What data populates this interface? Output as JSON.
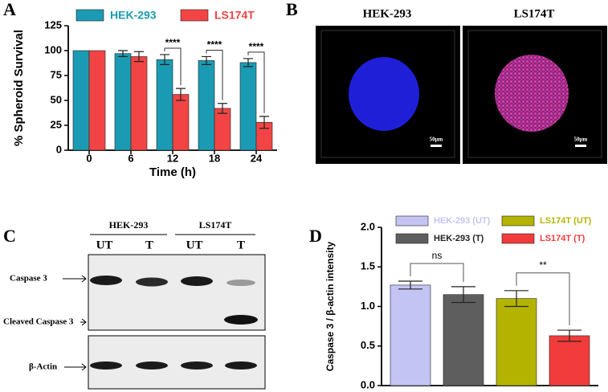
{
  "panel_labels": [
    "A",
    "B",
    "C",
    "D"
  ],
  "chart_data": [
    {
      "type": "bar",
      "x_label": "Time (h)",
      "y_label": "% Spheroid Survival",
      "categories": [
        "0",
        "6",
        "12",
        "18",
        "24"
      ],
      "series": [
        {
          "name": "HEK-293",
          "color": "#1b9bb3",
          "values": [
            100,
            97,
            91,
            90,
            88
          ],
          "errors": [
            0,
            3,
            5,
            4,
            4
          ]
        },
        {
          "name": "LS174T",
          "color": "#f24444",
          "values": [
            100,
            94,
            56,
            42,
            28
          ],
          "errors": [
            0,
            5,
            6,
            5,
            6
          ]
        }
      ],
      "significance": [
        null,
        null,
        "****",
        "****",
        "****"
      ],
      "ylim": [
        0,
        125
      ],
      "yticks": [
        0,
        25,
        50,
        75,
        100,
        125
      ],
      "legend": "top"
    },
    {
      "type": "bar",
      "y_label": "Caspase 3 / β-actin intensity",
      "categories": [
        null
      ],
      "series": [
        {
          "name": "HEK-293 (UT)",
          "color": "#c4c4f4",
          "values": [
            1.27
          ],
          "errors": [
            0.05
          ]
        },
        {
          "name": "HEK-293 (T)",
          "color": "#5e5e5e",
          "values": [
            1.15
          ],
          "errors": [
            0.1
          ]
        },
        {
          "name": "LS174T (UT)",
          "color": "#b4b400",
          "values": [
            1.1
          ],
          "errors": [
            0.1
          ]
        },
        {
          "name": "LS174T (T)",
          "color": "#f23c3c",
          "values": [
            0.63
          ],
          "errors": [
            0.07
          ]
        }
      ],
      "annotations": [
        "ns",
        "**"
      ],
      "ylim": [
        0,
        2
      ],
      "yticks": [
        {
          "value": 0,
          "label": "0.0"
        },
        {
          "value": 0.5,
          "label": "0.5"
        },
        {
          "value": 1,
          "label": "1.0"
        },
        {
          "value": 1.5,
          "label": "1.5"
        },
        {
          "value": 2,
          "label": "2.0"
        }
      ],
      "legend": "top"
    }
  ],
  "microscopy": {
    "titles": [
      "HEK-293",
      "LS174T"
    ],
    "scale_bars": [
      "50μm",
      "50μm"
    ]
  },
  "blot": {
    "groups": [
      "HEK-293",
      "LS174T"
    ],
    "lanes": [
      "UT",
      "T",
      "UT",
      "T"
    ],
    "bands": [
      "Caspase 3",
      "Cleaved Caspase 3",
      "β-Actin"
    ]
  }
}
